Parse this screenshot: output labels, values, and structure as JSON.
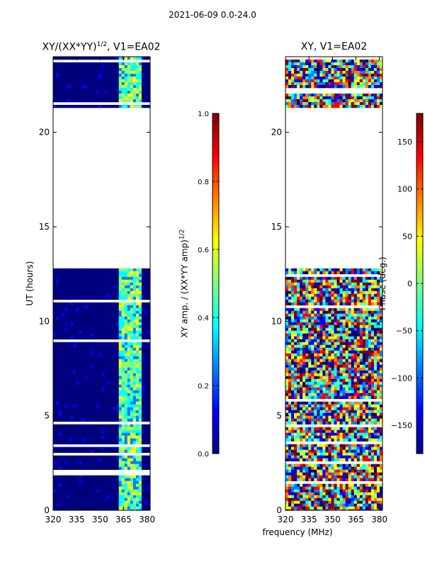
{
  "suptitle": "2021-06-09 0.0-24.0",
  "colors": {
    "frame": "#000000",
    "missing": "#ffffff",
    "jet": [
      "#00007f",
      "#0000ff",
      "#007fff",
      "#00ffff",
      "#7fff7f",
      "#ffff00",
      "#ff7f00",
      "#ff0000",
      "#7f0000"
    ]
  },
  "chart_data": [
    {
      "type": "heatmap",
      "title": "XY/(XX*YY)^(1/2), V1=EA02",
      "title_main": "XY/(XX*YY)",
      "title_sup": "1/2",
      "title_tail": ", V1=EA02",
      "xlabel": "",
      "ylabel": "UT (hours)",
      "xlim": [
        320,
        382
      ],
      "ylim": [
        0,
        24
      ],
      "xticks": [
        320,
        335,
        350,
        365,
        380
      ],
      "yticks": [
        0,
        5,
        10,
        15,
        20
      ],
      "data_spans_hours": [
        [
          0.0,
          12.8
        ],
        [
          21.3,
          24.0
        ]
      ],
      "missing_gap_hours": [
        12.8,
        21.3
      ],
      "colorbar": {
        "label": "XY amp. / (XX*YY amp)^(1/2)",
        "label_main": "XY amp. / (XX*YY amp)",
        "label_sup": "1/2",
        "range": [
          0.0,
          1.0
        ],
        "ticks": [
          0.0,
          0.2,
          0.4,
          0.6,
          0.8,
          1.0
        ],
        "tick_labels": [
          "0.0",
          "0.2",
          "0.4",
          "0.6",
          "0.8",
          "1.0"
        ]
      }
    },
    {
      "type": "heatmap",
      "title": "XY, V1=EA02",
      "xlabel": "frequency (MHz)",
      "ylabel": "",
      "xlim": [
        320,
        382
      ],
      "ylim": [
        0,
        24
      ],
      "xticks": [
        320,
        335,
        350,
        365,
        380
      ],
      "yticks": [
        0,
        5,
        10,
        15,
        20
      ],
      "data_spans_hours": [
        [
          0.0,
          12.8
        ],
        [
          21.3,
          24.0
        ]
      ],
      "missing_gap_hours": [
        12.8,
        21.3
      ],
      "colorbar": {
        "label": "Phase (deg.)",
        "range": [
          -180,
          180
        ],
        "ticks": [
          -150,
          -100,
          -50,
          0,
          50,
          100,
          150
        ],
        "tick_labels": [
          "−150",
          "−100",
          "−50",
          "0",
          "50",
          "100",
          "150"
        ]
      }
    }
  ]
}
